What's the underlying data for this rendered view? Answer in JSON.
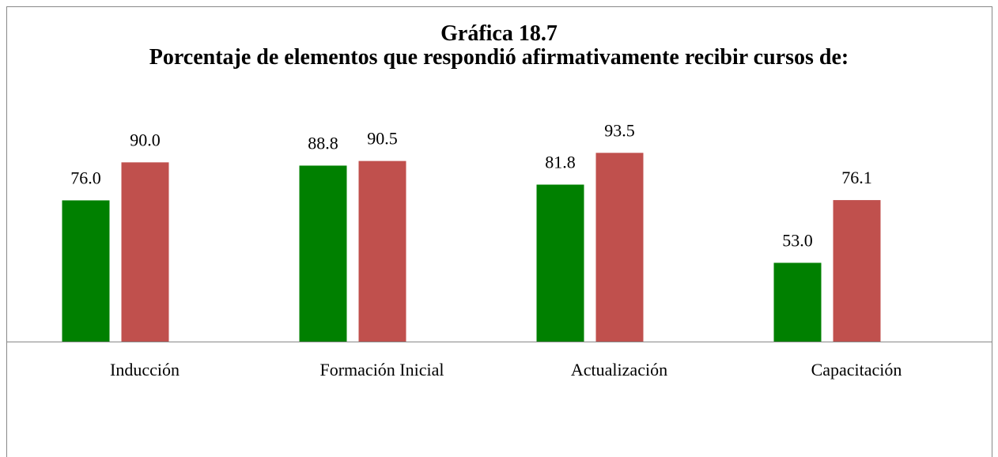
{
  "chart_data": {
    "type": "bar",
    "title": "Gráfica 18.7",
    "subtitle": "Porcentaje de elementos que respondió afirmativamente recibir cursos de:",
    "categories": [
      "Inducción",
      "Formación Inicial",
      "Actualización",
      "Capacitación"
    ],
    "series": [
      {
        "color": "#008000",
        "values": [
          76.0,
          88.8,
          81.8,
          53.0
        ],
        "value_labels": [
          "76.0",
          "88.8",
          "81.8",
          "53.0"
        ]
      },
      {
        "color": "#c0504d",
        "values": [
          90.0,
          90.5,
          93.5,
          76.1
        ],
        "value_labels": [
          "90.0",
          "90.5",
          "93.5",
          "76.1"
        ]
      }
    ],
    "ylim": [
      24,
      100
    ]
  }
}
